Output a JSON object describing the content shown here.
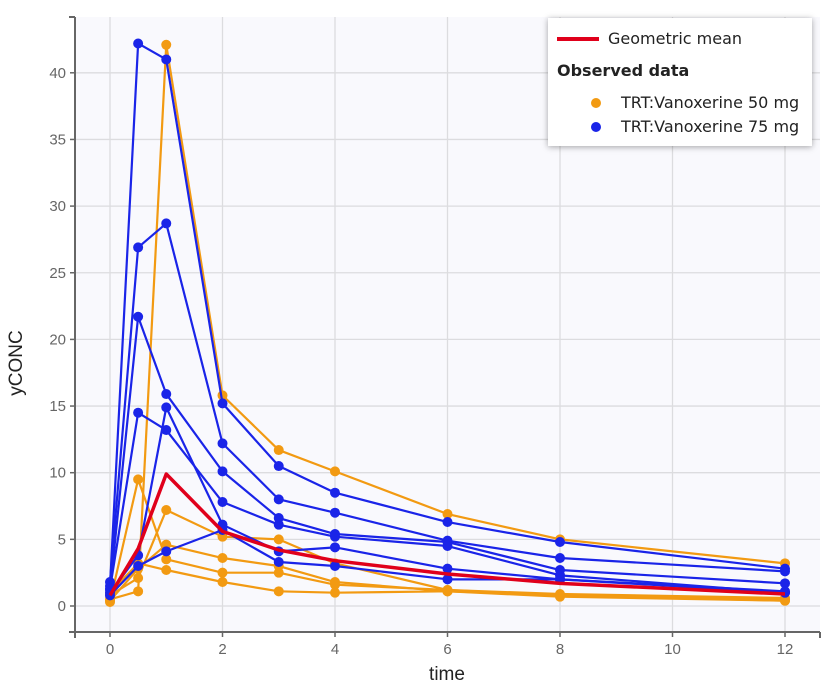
{
  "chart_data": {
    "type": "line",
    "title": "",
    "xlabel": "time",
    "ylabel": "yCONC",
    "xlim": [
      -0.6,
      12.6
    ],
    "ylim": [
      -2,
      44
    ],
    "x_ticks": [
      0,
      2,
      4,
      6,
      8,
      10,
      12
    ],
    "y_ticks": [
      0,
      5,
      10,
      15,
      20,
      25,
      30,
      35,
      40
    ],
    "grid": true,
    "legend_position": "top-right",
    "x": [
      0,
      0.5,
      1,
      2,
      3,
      4,
      6,
      8,
      12
    ],
    "mean": {
      "name": "Geometric mean",
      "color": "#e0001b",
      "values": [
        0.8,
        4.3,
        9.9,
        5.6,
        4.2,
        3.4,
        2.4,
        1.7,
        0.9
      ]
    },
    "groups": [
      {
        "name": "TRT:Vanoxerine 50 mg",
        "color": "#f29a12",
        "subjects": [
          [
            0.5,
            1.1,
            42.1,
            15.8,
            11.7,
            10.1,
            6.9,
            5.0,
            3.2
          ],
          [
            0.3,
            9.5,
            3.5,
            2.5,
            2.5,
            1.6,
            1.2,
            0.8,
            0.4
          ],
          [
            0.8,
            2.1,
            7.2,
            5.2,
            5.0,
            3.2,
            1.2,
            0.9,
            0.6
          ],
          [
            0.4,
            2.8,
            4.6,
            3.6,
            3.0,
            1.8,
            1.1,
            0.8,
            0.5
          ],
          [
            1.0,
            3.2,
            2.7,
            1.8,
            1.1,
            1.0,
            1.1,
            0.7,
            0.4
          ]
        ]
      },
      {
        "name": "TRT:Vanoxerine 75 mg",
        "color": "#1a24e8",
        "subjects": [
          [
            1.5,
            42.2,
            41.0,
            15.2,
            10.5,
            8.5,
            6.3,
            4.8,
            2.8
          ],
          [
            1.8,
            26.9,
            28.7,
            12.2,
            8.0,
            7.0,
            4.9,
            3.6,
            2.6
          ],
          [
            1.2,
            21.7,
            15.9,
            10.1,
            6.6,
            5.4,
            4.8,
            2.7,
            1.7
          ],
          [
            1.3,
            14.5,
            13.2,
            7.8,
            6.1,
            5.2,
            4.5,
            2.3,
            1.0
          ],
          [
            1.0,
            3.8,
            14.9,
            6.1,
            4.1,
            4.4,
            2.8,
            2.0,
            1.0
          ],
          [
            0.8,
            3.0,
            4.1,
            5.7,
            3.3,
            3.0,
            2.0,
            2.0,
            1.1
          ]
        ]
      }
    ]
  },
  "legend": {
    "mean_label": "Geometric mean",
    "heading": "Observed data",
    "items": [
      {
        "label": "TRT:Vanoxerine 50 mg",
        "color": "#f29a12"
      },
      {
        "label": "TRT:Vanoxerine 75 mg",
        "color": "#1a24e8"
      }
    ]
  },
  "axes": {
    "x_title": "time",
    "y_title": "yCONC"
  }
}
